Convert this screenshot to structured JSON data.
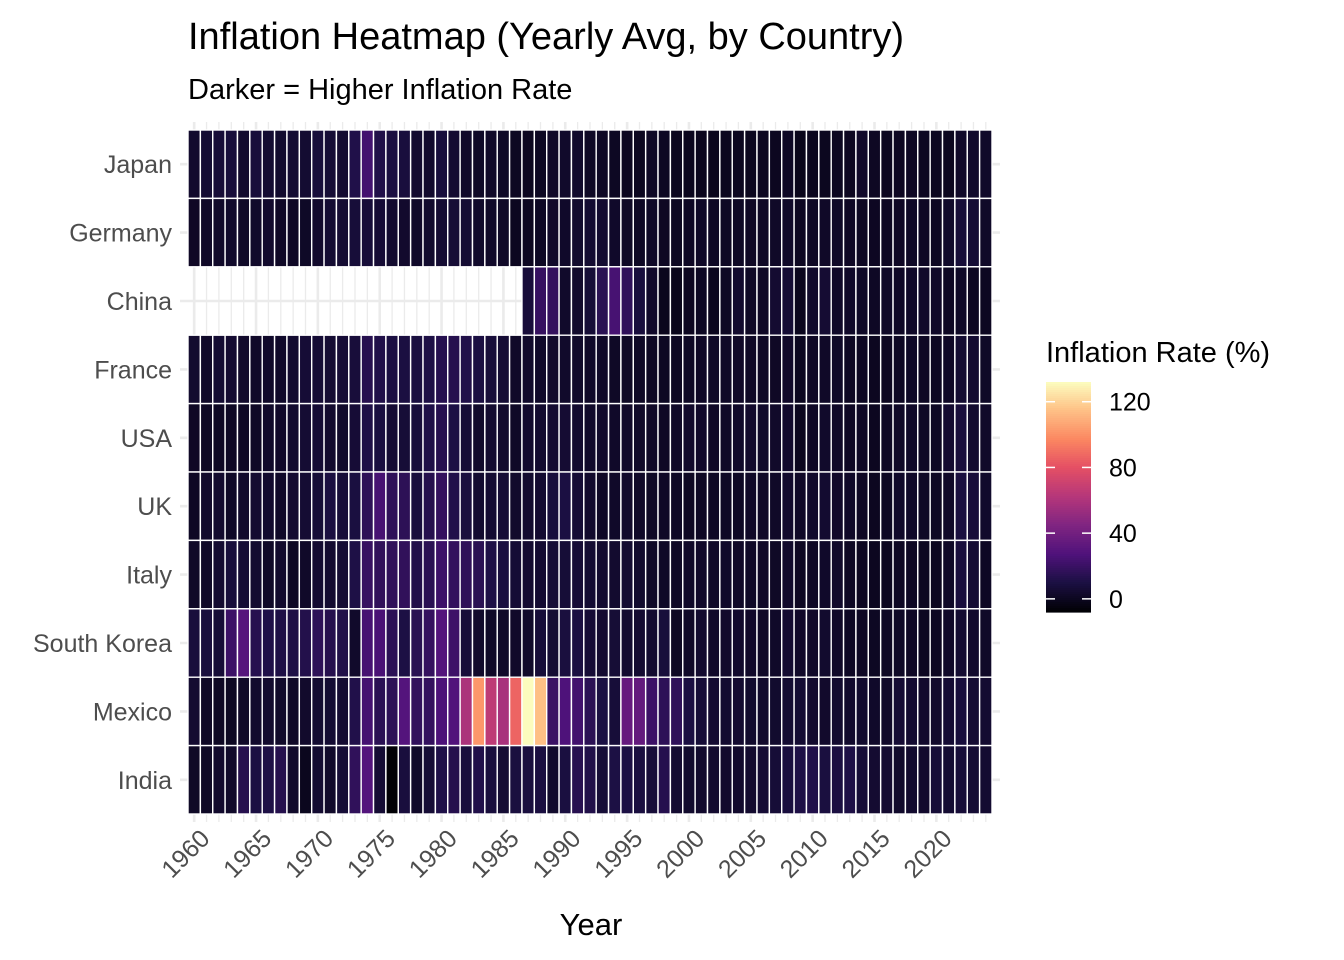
{
  "chart_data": {
    "type": "heatmap",
    "title": "Inflation Heatmap (Yearly Avg, by Country)",
    "subtitle": "Darker = Higher Inflation Rate",
    "xlabel": "Year",
    "ylabel": "",
    "x_range": [
      1960,
      2024
    ],
    "x_ticks": [
      1960,
      1965,
      1970,
      1975,
      1980,
      1985,
      1990,
      1995,
      2000,
      2005,
      2010,
      2015,
      2020
    ],
    "x_tick_labels": [
      "1960",
      "1965",
      "1970",
      "1975",
      "1980",
      "1985",
      "1990",
      "1995",
      "2000",
      "2005",
      "2010",
      "2015",
      "2020"
    ],
    "countries": [
      "Japan",
      "Germany",
      "China",
      "France",
      "USA",
      "UK",
      "Italy",
      "South Korea",
      "Mexico",
      "India"
    ],
    "legend": {
      "title": "Inflation Rate (%)",
      "ticks": [
        0,
        40,
        80,
        120
      ],
      "tick_labels": [
        "0",
        "40",
        "80",
        "120"
      ],
      "min": -8,
      "max": 132,
      "palette": "magma",
      "placement": "right"
    },
    "grid": true,
    "series": [
      {
        "name": "Japan",
        "start_year": 1960,
        "values": [
          3.6,
          5.3,
          6.8,
          7.6,
          3.9,
          7.6,
          5.1,
          4.0,
          5.3,
          5.2,
          7.7,
          6.3,
          4.9,
          11.6,
          23.2,
          11.7,
          9.4,
          8.2,
          4.2,
          3.7,
          7.8,
          4.9,
          2.7,
          1.9,
          2.3,
          2.0,
          0.6,
          0.1,
          0.7,
          2.3,
          3.1,
          3.3,
          1.7,
          1.3,
          0.7,
          -0.1,
          0.1,
          1.7,
          0.7,
          -0.3,
          -0.7,
          -0.8,
          -0.9,
          -0.3,
          0.0,
          -0.3,
          0.2,
          0.1,
          1.4,
          -1.4,
          -0.7,
          -0.3,
          0.0,
          0.3,
          2.8,
          0.8,
          -0.1,
          0.5,
          1.0,
          0.5,
          0.0,
          -0.2,
          2.5,
          3.3,
          2.7
        ]
      },
      {
        "name": "Germany",
        "start_year": 1960,
        "values": [
          1.5,
          2.3,
          2.9,
          3.0,
          2.3,
          3.2,
          3.6,
          1.6,
          1.6,
          1.9,
          3.4,
          5.2,
          5.5,
          7.0,
          7.0,
          6.0,
          4.3,
          3.7,
          2.7,
          4.0,
          5.4,
          6.3,
          5.3,
          3.3,
          2.4,
          2.1,
          -0.1,
          0.2,
          1.3,
          2.8,
          2.7,
          4.0,
          5.1,
          4.5,
          2.7,
          1.7,
          1.4,
          1.9,
          0.9,
          0.6,
          1.4,
          1.9,
          1.4,
          1.0,
          1.7,
          1.5,
          1.6,
          2.3,
          2.6,
          0.3,
          1.1,
          2.1,
          2.0,
          1.5,
          0.9,
          0.5,
          0.5,
          1.5,
          1.7,
          1.4,
          0.5,
          3.1,
          6.9,
          5.9,
          2.2
        ]
      },
      {
        "name": "China",
        "start_year": 1987,
        "values": [
          7.3,
          18.8,
          18.2,
          3.1,
          3.4,
          6.4,
          14.7,
          24.3,
          16.9,
          8.3,
          2.8,
          -0.8,
          -1.4,
          0.3,
          0.7,
          -0.7,
          1.1,
          3.9,
          1.8,
          1.6,
          4.8,
          5.9,
          -0.7,
          3.3,
          5.4,
          2.6,
          2.6,
          2.0,
          1.4,
          2.0,
          1.6,
          2.1,
          2.9,
          2.4,
          1.0,
          2.0,
          0.2,
          0.2
        ]
      },
      {
        "name": "France",
        "start_year": 1960,
        "values": [
          4.1,
          2.4,
          5.3,
          4.8,
          3.4,
          2.5,
          2.7,
          2.7,
          4.6,
          6.1,
          5.9,
          5.5,
          6.2,
          7.3,
          13.7,
          11.8,
          9.6,
          9.4,
          9.1,
          10.8,
          13.6,
          13.4,
          11.8,
          9.6,
          7.4,
          5.8,
          2.5,
          3.3,
          2.7,
          3.5,
          3.2,
          3.2,
          2.4,
          2.1,
          1.7,
          1.8,
          2.0,
          1.2,
          0.7,
          0.5,
          1.7,
          1.6,
          1.9,
          2.1,
          2.1,
          1.7,
          1.7,
          1.5,
          2.8,
          0.1,
          1.5,
          2.1,
          2.0,
          0.9,
          0.5,
          0.0,
          0.2,
          1.0,
          1.9,
          1.1,
          0.5,
          1.6,
          5.2,
          4.9,
          2.0
        ]
      },
      {
        "name": "USA",
        "start_year": 1960,
        "values": [
          1.5,
          1.1,
          1.2,
          1.2,
          1.3,
          1.6,
          3.0,
          2.8,
          4.3,
          5.5,
          5.8,
          4.3,
          3.3,
          6.2,
          11.1,
          9.1,
          5.7,
          6.5,
          7.6,
          11.3,
          13.5,
          10.3,
          6.1,
          3.2,
          4.3,
          3.6,
          1.9,
          3.6,
          4.1,
          4.8,
          5.4,
          4.2,
          3.0,
          3.0,
          2.6,
          2.8,
          2.9,
          2.3,
          1.5,
          2.2,
          3.4,
          2.8,
          1.6,
          2.3,
          2.7,
          3.4,
          3.2,
          2.9,
          3.8,
          -0.4,
          1.6,
          3.2,
          2.1,
          1.5,
          1.6,
          0.1,
          1.3,
          2.1,
          2.4,
          1.8,
          1.2,
          4.7,
          8.0,
          4.1,
          2.9
        ]
      },
      {
        "name": "UK",
        "start_year": 1960,
        "values": [
          1.0,
          3.4,
          4.2,
          2.0,
          3.3,
          4.8,
          3.9,
          2.5,
          4.7,
          5.4,
          6.4,
          9.4,
          7.1,
          9.2,
          16.0,
          24.2,
          16.6,
          15.8,
          8.3,
          13.4,
          18.0,
          11.9,
          8.6,
          4.6,
          5.0,
          6.1,
          3.4,
          4.2,
          4.9,
          7.8,
          9.5,
          5.9,
          3.7,
          1.6,
          2.4,
          3.5,
          2.4,
          1.8,
          1.6,
          1.3,
          0.8,
          1.2,
          1.3,
          1.4,
          1.3,
          2.1,
          2.3,
          2.3,
          3.6,
          2.2,
          3.3,
          4.5,
          2.8,
          2.6,
          1.5,
          0.0,
          0.7,
          2.7,
          2.5,
          1.8,
          0.9,
          2.6,
          9.1,
          7.3,
          3.3
        ]
      },
      {
        "name": "Italy",
        "start_year": 1960,
        "values": [
          2.3,
          2.1,
          4.7,
          7.5,
          5.9,
          4.6,
          2.3,
          3.7,
          1.4,
          2.6,
          5.0,
          4.8,
          5.7,
          10.8,
          19.1,
          17.0,
          16.8,
          17.0,
          12.1,
          14.8,
          21.2,
          17.8,
          16.5,
          14.7,
          10.8,
          9.2,
          5.8,
          4.7,
          5.0,
          6.3,
          6.5,
          6.2,
          5.3,
          4.6,
          4.1,
          5.2,
          4.0,
          2.0,
          2.0,
          1.7,
          2.5,
          2.8,
          2.5,
          2.7,
          2.2,
          2.0,
          2.1,
          1.8,
          3.3,
          0.8,
          1.5,
          2.7,
          3.0,
          1.2,
          0.2,
          0.0,
          -0.1,
          1.2,
          1.1,
          0.6,
          -0.1,
          1.9,
          8.2,
          5.6,
          1.0
        ]
      },
      {
        "name": "South Korea",
        "start_year": 1960,
        "values": [
          8.0,
          8.2,
          6.6,
          20.7,
          29.5,
          13.6,
          11.3,
          10.9,
          10.8,
          12.4,
          15.9,
          13.4,
          11.7,
          3.2,
          24.3,
          25.3,
          15.3,
          10.1,
          14.5,
          18.3,
          28.7,
          21.3,
          7.2,
          3.4,
          2.3,
          2.5,
          2.8,
          3.0,
          7.1,
          5.7,
          8.6,
          9.3,
          6.2,
          4.8,
          6.3,
          4.5,
          4.9,
          4.4,
          7.5,
          0.8,
          2.3,
          4.1,
          2.8,
          3.5,
          3.6,
          2.8,
          2.2,
          2.5,
          4.7,
          2.8,
          2.9,
          4.0,
          2.2,
          1.3,
          1.3,
          0.7,
          1.0,
          1.9,
          1.5,
          0.4,
          0.5,
          2.5,
          5.1,
          3.6,
          2.3
        ]
      },
      {
        "name": "Mexico",
        "start_year": 1960,
        "values": [
          4.9,
          1.6,
          1.2,
          0.6,
          2.3,
          3.6,
          4.2,
          3.0,
          2.3,
          3.4,
          5.2,
          5.3,
          5.0,
          12.0,
          23.8,
          15.2,
          15.8,
          29.0,
          17.5,
          18.2,
          26.4,
          27.9,
          58.9,
          101.8,
          65.5,
          57.7,
          86.2,
          131.8,
          114.2,
          20.0,
          26.7,
          22.7,
          15.5,
          9.8,
          7.0,
          35.0,
          34.4,
          20.6,
          15.9,
          16.6,
          9.5,
          6.4,
          5.0,
          4.5,
          4.7,
          4.0,
          3.6,
          4.0,
          5.1,
          5.3,
          4.2,
          3.4,
          4.1,
          3.8,
          4.0,
          2.7,
          2.8,
          6.0,
          4.9,
          3.6,
          3.4,
          5.7,
          7.9,
          5.5,
          4.7
        ]
      },
      {
        "name": "India",
        "start_year": 1960,
        "values": [
          1.8,
          1.7,
          3.6,
          2.9,
          13.4,
          9.5,
          10.8,
          13.1,
          3.2,
          -0.6,
          5.1,
          3.1,
          6.4,
          16.9,
          28.6,
          5.7,
          -7.6,
          8.3,
          2.5,
          6.3,
          11.3,
          13.1,
          7.9,
          11.9,
          8.3,
          5.6,
          8.7,
          8.8,
          9.4,
          3.3,
          9.0,
          13.9,
          11.8,
          6.4,
          10.2,
          10.2,
          9.0,
          7.2,
          13.2,
          4.7,
          4.0,
          3.8,
          4.3,
          3.8,
          3.8,
          4.2,
          5.8,
          6.4,
          8.4,
          10.9,
          12.0,
          8.9,
          9.3,
          10.9,
          6.4,
          4.9,
          4.9,
          3.3,
          3.9,
          3.7,
          6.6,
          5.1,
          6.7,
          5.7,
          4.9
        ]
      }
    ]
  }
}
